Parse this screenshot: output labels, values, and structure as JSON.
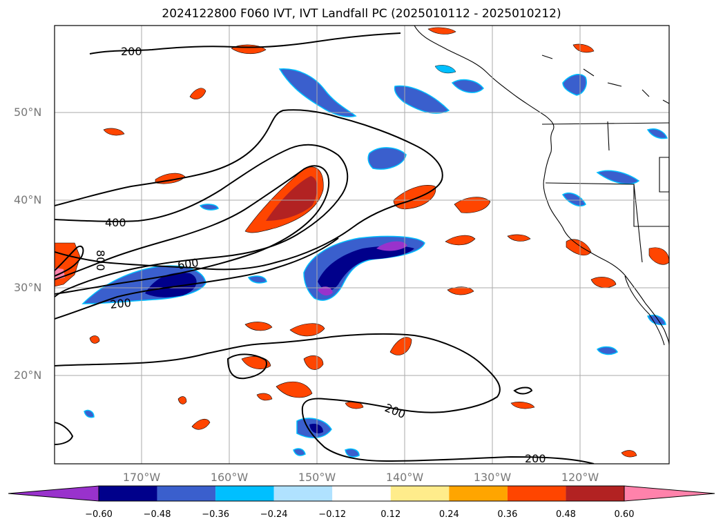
{
  "title": "2024122800 F060 IVT, IVT Landfall PC (2025010112 - 2025010212)",
  "lat_labels": [
    "50°N",
    "40°N",
    "30°N",
    "20°N"
  ],
  "lon_labels": [
    "170°W",
    "160°W",
    "150°W",
    "140°W",
    "130°W",
    "120°W"
  ],
  "contour_labels": [
    "200",
    "400",
    "600",
    "800",
    "200",
    "200",
    "200"
  ],
  "colorbar": {
    "ticks": [
      "−0.60",
      "−0.48",
      "−0.36",
      "−0.24",
      "−0.12",
      "0.12",
      "0.24",
      "0.36",
      "0.48",
      "0.60"
    ],
    "colors": [
      "#9932cc",
      "#00008b",
      "#3a5fcd",
      "#00bfff",
      "#b0e2ff",
      "#ffffff",
      "#ffec8b",
      "#ffa500",
      "#ff4500",
      "#b22222",
      "#ff82ab"
    ]
  },
  "chart_data": {
    "type": "map-contour-fill",
    "lon_range": [
      "180°W",
      "110°W"
    ],
    "lat_range": [
      "10°N",
      "60°N"
    ],
    "contour_levels": [
      200,
      400,
      600,
      800
    ],
    "fill_levels": [
      -0.6,
      -0.48,
      -0.36,
      -0.24,
      -0.12,
      0.12,
      0.24,
      0.36,
      0.48,
      0.6
    ]
  }
}
